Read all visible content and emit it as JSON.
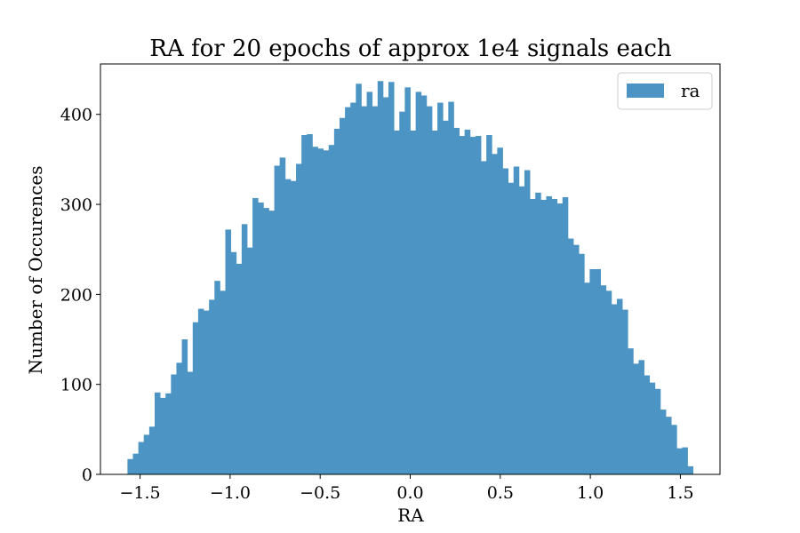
{
  "chart_data": {
    "type": "bar",
    "title": "RA for 20 epochs of approx 1e4 signals each",
    "xlabel": "RA",
    "ylabel": "Number of Occurences",
    "bin_range": [
      -1.57,
      1.57
    ],
    "xlim": [
      -1.72,
      1.72
    ],
    "ylim": [
      0,
      456
    ],
    "xticks": [
      -1.5,
      -1.0,
      -0.5,
      0.0,
      0.5,
      1.0,
      1.5
    ],
    "xtick_labels": [
      "−1.5",
      "−1.0",
      "−0.5",
      "0.0",
      "0.5",
      "1.0",
      "1.5"
    ],
    "yticks": [
      0,
      100,
      200,
      300,
      400
    ],
    "ytick_labels": [
      "0",
      "100",
      "200",
      "300",
      "400"
    ],
    "grid": false,
    "legend_position": "top-right",
    "series": [
      {
        "name": "ra",
        "color": "#4c94c4",
        "values": [
          17,
          23,
          36,
          44,
          53,
          91,
          85,
          90,
          111,
          124,
          150,
          114,
          169,
          184,
          182,
          194,
          215,
          204,
          272,
          247,
          234,
          278,
          252,
          307,
          302,
          296,
          293,
          343,
          352,
          328,
          326,
          345,
          377,
          378,
          364,
          362,
          360,
          366,
          384,
          396,
          408,
          413,
          434,
          409,
          425,
          409,
          437,
          419,
          436,
          382,
          403,
          430,
          382,
          425,
          421,
          409,
          382,
          413,
          393,
          414,
          385,
          376,
          383,
          375,
          376,
          348,
          377,
          356,
          363,
          340,
          324,
          342,
          320,
          338,
          306,
          313,
          305,
          309,
          306,
          301,
          308,
          262,
          255,
          245,
          213,
          228,
          228,
          210,
          204,
          189,
          195,
          183,
          140,
          123,
          127,
          110,
          102,
          95,
          72,
          64,
          55,
          29,
          30,
          9
        ]
      }
    ]
  }
}
